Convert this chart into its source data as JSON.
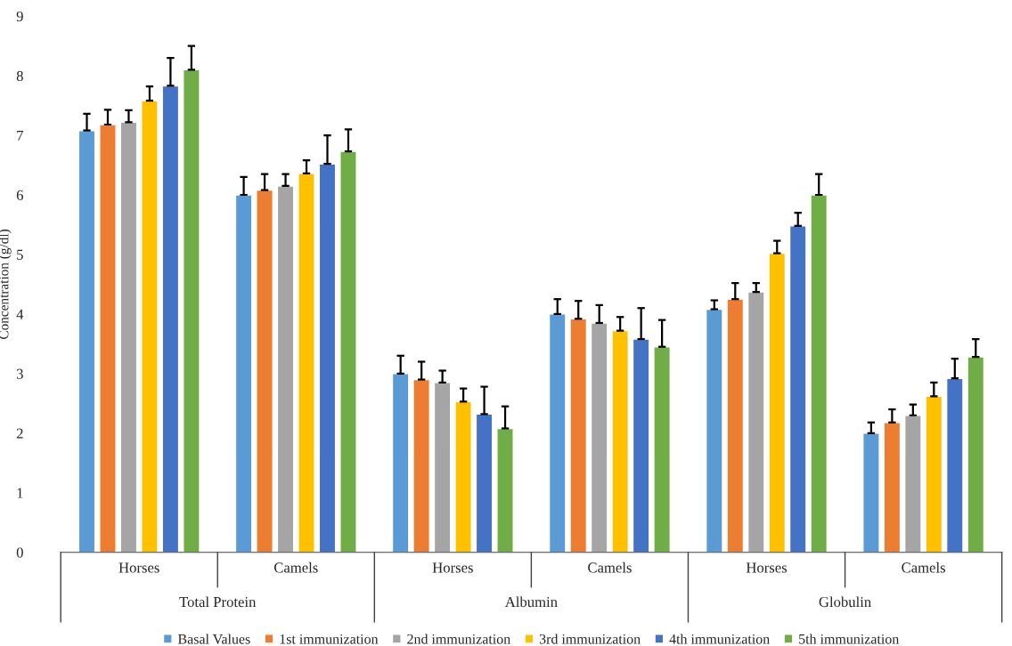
{
  "chart_data": {
    "type": "bar",
    "ylabel": "Concentration (g/dl)",
    "categories": [
      "Horses",
      "Camels",
      "Horses",
      "Camels",
      "Horses",
      "Camels"
    ],
    "annotations": [
      "Total Protein",
      "Albumin",
      "Globulin"
    ],
    "ylim": [
      0,
      9
    ],
    "yticks": [
      0,
      1,
      2,
      3,
      4,
      5,
      6,
      7,
      8,
      9
    ],
    "grid": false,
    "legend": "bottom",
    "series": [
      {
        "name": "Basal Values",
        "color": "#5b9bd5",
        "values": [
          7.08,
          6.0,
          3.0,
          4.0,
          4.08,
          2.0
        ],
        "errors": [
          [
            7.08,
            7.36
          ],
          [
            6.0,
            6.3
          ],
          [
            3.0,
            3.3
          ],
          [
            4.0,
            4.25
          ],
          [
            4.08,
            4.23
          ],
          [
            2.0,
            2.18
          ]
        ]
      },
      {
        "name": "1st immunization",
        "color": "#ed7d31",
        "values": [
          7.18,
          6.08,
          2.9,
          3.92,
          4.25,
          2.18
        ],
        "errors": [
          [
            7.18,
            7.43
          ],
          [
            6.08,
            6.35
          ],
          [
            2.9,
            3.2
          ],
          [
            3.92,
            4.22
          ],
          [
            4.25,
            4.52
          ],
          [
            2.18,
            2.4
          ]
        ]
      },
      {
        "name": "2nd immunization",
        "color": "#a5a5a5",
        "values": [
          7.22,
          6.15,
          2.85,
          3.85,
          4.37,
          2.3
        ],
        "errors": [
          [
            7.22,
            7.42
          ],
          [
            6.15,
            6.35
          ],
          [
            2.85,
            3.05
          ],
          [
            3.85,
            4.15
          ],
          [
            4.37,
            4.52
          ],
          [
            2.3,
            2.48
          ]
        ]
      },
      {
        "name": "3rd immunization",
        "color": "#ffc000",
        "values": [
          7.58,
          6.36,
          2.53,
          3.72,
          5.02,
          2.62
        ],
        "errors": [
          [
            7.58,
            7.82
          ],
          [
            6.36,
            6.58
          ],
          [
            2.53,
            2.75
          ],
          [
            3.72,
            3.95
          ],
          [
            5.02,
            5.23
          ],
          [
            2.62,
            2.85
          ]
        ]
      },
      {
        "name": "4th immunization",
        "color": "#4472c4",
        "values": [
          7.83,
          6.52,
          2.32,
          3.58,
          5.48,
          2.92
        ],
        "errors": [
          [
            7.83,
            8.3
          ],
          [
            6.52,
            7.0
          ],
          [
            2.32,
            2.78
          ],
          [
            3.58,
            4.1
          ],
          [
            5.48,
            5.7
          ],
          [
            2.92,
            3.25
          ]
        ]
      },
      {
        "name": "5th immunization",
        "color": "#70ad47",
        "values": [
          8.1,
          6.73,
          2.08,
          3.45,
          6.0,
          3.28
        ],
        "errors": [
          [
            8.1,
            8.5
          ],
          [
            6.73,
            7.1
          ],
          [
            2.08,
            2.45
          ],
          [
            3.45,
            3.9
          ],
          [
            6.0,
            6.35
          ],
          [
            3.28,
            3.58
          ]
        ]
      }
    ]
  }
}
